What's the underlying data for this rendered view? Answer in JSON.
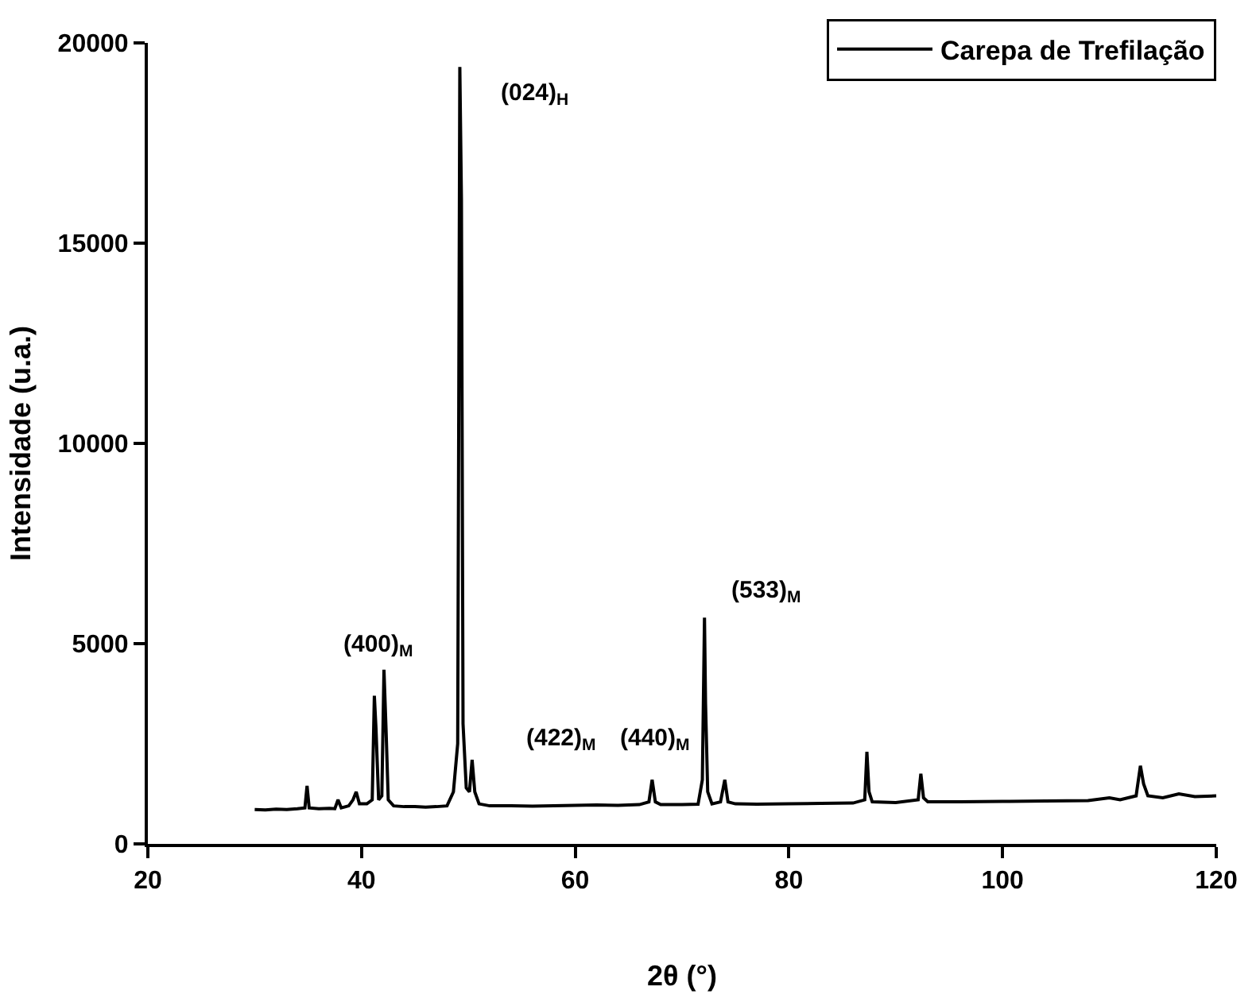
{
  "chart_data": {
    "type": "line",
    "xlabel": "2θ (°)",
    "ylabel": "Intensidade (u.a.)",
    "xlim": [
      20,
      120
    ],
    "xticks": [
      20,
      40,
      60,
      80,
      100,
      120
    ],
    "ylim": [
      0,
      20000
    ],
    "yticks": [
      0,
      5000,
      10000,
      15000,
      20000
    ],
    "legend": "top right",
    "marker": "none",
    "line_style": "solid",
    "x": [
      30,
      31,
      32,
      33,
      34,
      34.7,
      34.9,
      35.1,
      36,
      37,
      37.5,
      37.8,
      38.1,
      38.8,
      39.2,
      39.5,
      39.8,
      40.5,
      41.0,
      41.2,
      41.35,
      41.6,
      41.9,
      42.1,
      42.3,
      42.5,
      43,
      44,
      45,
      46,
      47,
      48,
      48.6,
      49.0,
      49.2,
      49.35,
      49.5,
      49.8,
      50.1,
      50.35,
      50.6,
      51,
      52,
      54,
      56,
      58,
      60,
      62,
      64,
      66,
      66.9,
      67.2,
      67.5,
      68,
      70,
      71.5,
      71.9,
      72.1,
      72.2,
      72.4,
      72.8,
      73.6,
      74.0,
      74.3,
      75,
      77,
      80,
      83,
      86,
      87.1,
      87.3,
      87.5,
      87.8,
      90,
      92.1,
      92.35,
      92.6,
      93,
      96,
      100,
      104,
      108,
      110,
      111,
      112.5,
      112.9,
      113.2,
      113.6,
      115,
      116.5,
      118,
      120
    ],
    "series": [
      {
        "name": "Carepa de Trefilação",
        "color": "#000000",
        "values": [
          860,
          850,
          870,
          860,
          880,
          900,
          1450,
          900,
          880,
          890,
          880,
          1100,
          900,
          950,
          1100,
          1300,
          1000,
          1000,
          1100,
          3700,
          2900,
          1100,
          1200,
          4350,
          2800,
          1100,
          950,
          930,
          930,
          920,
          930,
          950,
          1300,
          2500,
          19400,
          16100,
          3000,
          1400,
          1300,
          2100,
          1300,
          1000,
          950,
          950,
          940,
          950,
          960,
          970,
          960,
          980,
          1050,
          1600,
          1050,
          980,
          980,
          990,
          1600,
          5650,
          3500,
          1300,
          1000,
          1050,
          1600,
          1050,
          1000,
          990,
          1000,
          1010,
          1020,
          1100,
          2300,
          1300,
          1050,
          1030,
          1100,
          1750,
          1150,
          1050,
          1050,
          1060,
          1070,
          1080,
          1150,
          1100,
          1200,
          1950,
          1500,
          1200,
          1150,
          1250,
          1180,
          1200
        ]
      }
    ],
    "annotations": [
      {
        "text": "(024)$_{H}$",
        "x": 49.2,
        "y": 19400
      },
      {
        "text": "(400)$_{M}$",
        "x": 42.1,
        "y": 4350
      },
      {
        "text": "(422)$_{M}$",
        "x": 50.35,
        "y": 2100
      },
      {
        "text": "(440)$_{M}$",
        "x": 67.2,
        "y": 1600
      },
      {
        "text": "(533)$_{M}$",
        "x": 72.1,
        "y": 5650
      }
    ]
  }
}
